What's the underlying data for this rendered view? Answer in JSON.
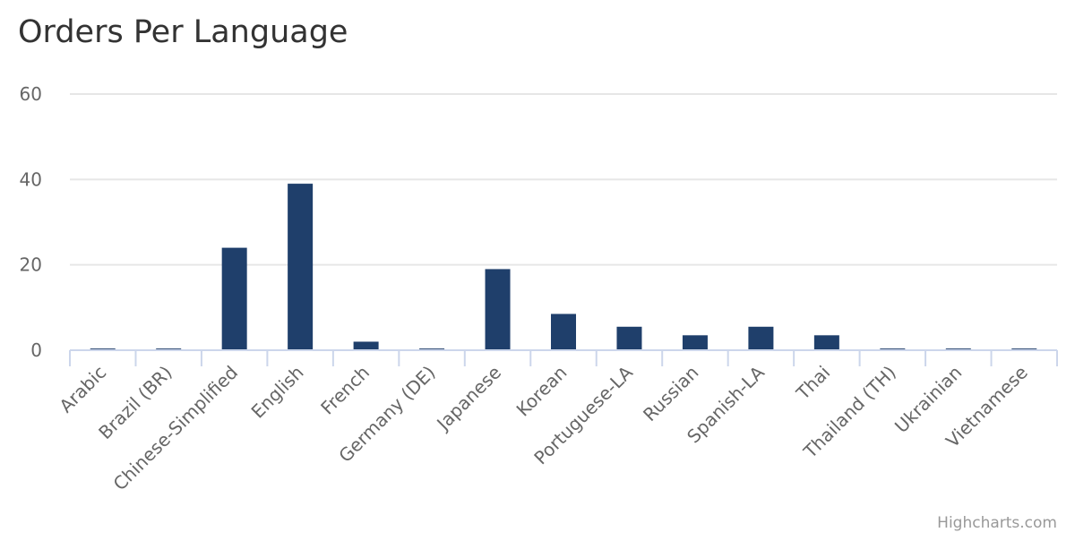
{
  "chart_data": {
    "type": "bar",
    "title": "Orders Per Language",
    "xlabel": "",
    "ylabel": "",
    "categories": [
      "Arabic",
      "Brazil (BR)",
      "Chinese-Simplified",
      "English",
      "French",
      "Germany (DE)",
      "Japanese",
      "Korean",
      "Portuguese-LA",
      "Russian",
      "Spanish-LA",
      "Thai",
      "Thailand (TH)",
      "Ukrainian",
      "Vietnamese"
    ],
    "values": [
      0.4,
      0.4,
      24,
      39,
      2,
      0.4,
      19,
      8.5,
      5.5,
      3.5,
      5.5,
      3.5,
      0.4,
      0.4,
      0.4
    ],
    "ylim": [
      0,
      60
    ],
    "yticks": [
      "0",
      "20",
      "40",
      "60"
    ],
    "grid": true,
    "legend": "none",
    "series_color": "#1f3f6b",
    "credits": "Highcharts.com"
  }
}
